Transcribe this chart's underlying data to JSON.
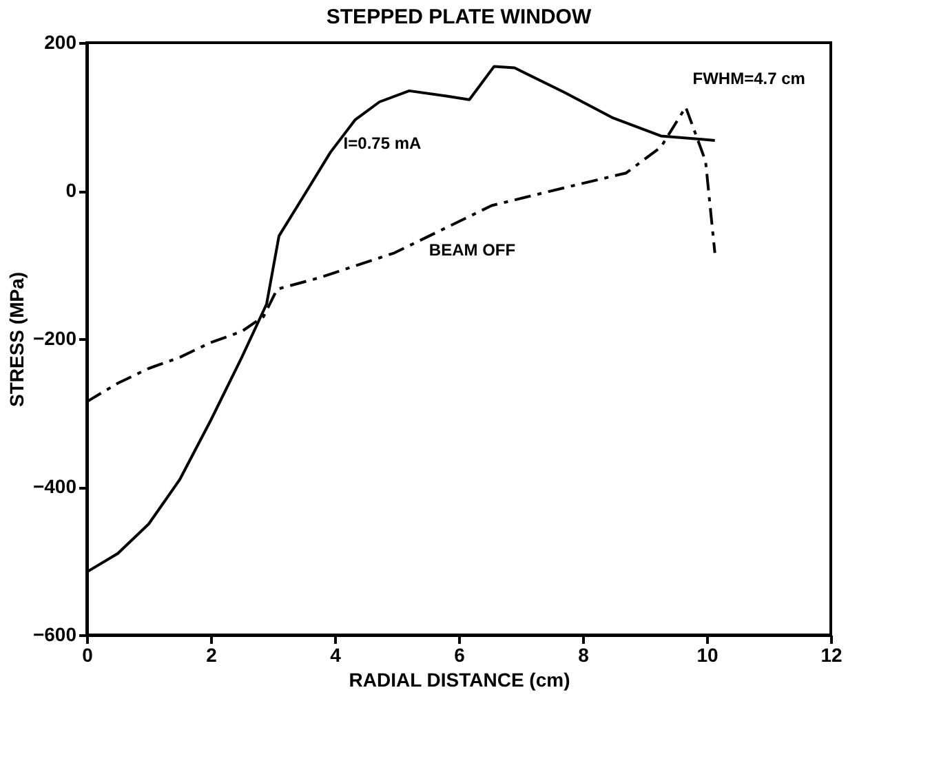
{
  "chart_data": {
    "type": "line",
    "title": "STEPPED PLATE WINDOW",
    "xlabel": "RADIAL DISTANCE (cm)",
    "ylabel": "STRESS (MPa)",
    "xlim": [
      0,
      12
    ],
    "xticks": [
      0,
      2,
      4,
      6,
      8,
      10,
      12
    ],
    "ylim": [
      -600,
      200
    ],
    "yticks": [
      -600,
      -400,
      -200,
      0,
      200
    ],
    "grid": false,
    "annotations": [
      "FWHM=4.7 cm"
    ],
    "series": [
      {
        "name": "I=0.75 mA",
        "color": "#000000",
        "line_style": "solid",
        "x": [
          0,
          0.5,
          1,
          1.5,
          2,
          2.5,
          2.9,
          3.1,
          3.55,
          3.93,
          4.33,
          4.72,
          5.2,
          5.8,
          6.17,
          6.57,
          6.9,
          7.7,
          8.47,
          9.26,
          10.13
        ],
        "values": [
          -515,
          -490,
          -450,
          -390,
          -310,
          -225,
          -153,
          -61,
          0,
          52,
          96,
          120,
          135,
          128,
          123,
          168,
          166,
          133,
          99,
          74,
          68
        ]
      },
      {
        "name": "BEAM OFF",
        "color": "#000000",
        "line_style": "dashed",
        "x": [
          0,
          0.5,
          1,
          1.5,
          2,
          2.5,
          2.85,
          3.07,
          3.77,
          4.96,
          6.53,
          7.7,
          8.7,
          9.26,
          9.66,
          9.98,
          10.13
        ],
        "values": [
          -285,
          -260,
          -240,
          -225,
          -205,
          -190,
          -170,
          -133,
          -117,
          -84,
          -20,
          4,
          24,
          59,
          113,
          40,
          -84
        ]
      }
    ]
  }
}
